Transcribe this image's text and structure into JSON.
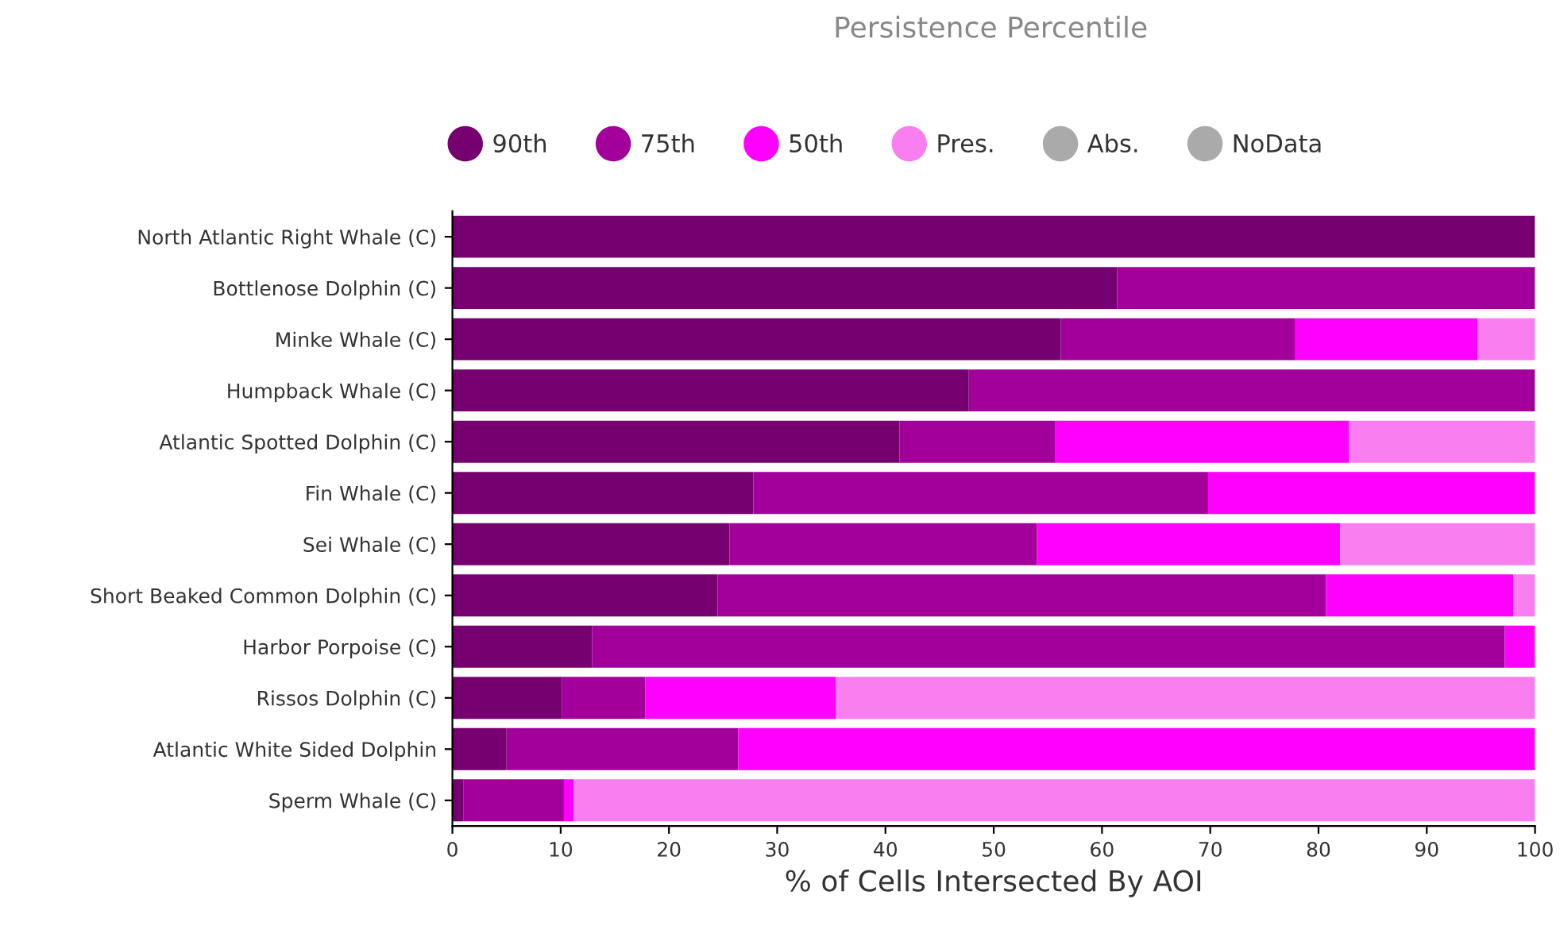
{
  "chart_data": {
    "type": "bar",
    "orientation": "horizontal",
    "stacked": true,
    "title": "Persistence Percentile",
    "xlabel": "% of Cells Intersected By AOI",
    "categories": [
      "North Atlantic Right Whale (C)",
      "Bottlenose Dolphin (C)",
      "Minke Whale (C)",
      "Humpback Whale (C)",
      "Atlantic Spotted Dolphin (C)",
      "Fin Whale (C)",
      "Sei Whale (C)",
      "Short Beaked Common Dolphin (C)",
      "Harbor Porpoise (C)",
      "Rissos Dolphin (C)",
      "Atlantic White Sided Dolphin",
      "Sperm Whale (C)"
    ],
    "series": [
      {
        "name": "90th",
        "color": "#76006f",
        "values": [
          100,
          61.4,
          56.2,
          47.7,
          41.3,
          27.8,
          25.6,
          24.5,
          12.9,
          10.1,
          5.0,
          1.0
        ]
      },
      {
        "name": "75th",
        "color": "#a3009b",
        "values": [
          0,
          38.6,
          21.6,
          52.3,
          14.4,
          42.0,
          28.4,
          56.2,
          84.3,
          7.7,
          21.4,
          9.3
        ]
      },
      {
        "name": "50th",
        "color": "#ff00ff",
        "values": [
          0,
          0,
          16.9,
          0,
          27.1,
          30.2,
          28.0,
          17.3,
          2.8,
          17.6,
          73.6,
          0.9
        ]
      },
      {
        "name": "Pres.",
        "color": "#f97ef0",
        "values": [
          0,
          0,
          5.3,
          0,
          17.2,
          0,
          18.0,
          2.0,
          0,
          64.6,
          0,
          88.8
        ]
      },
      {
        "name": "Abs.",
        "color": "#aaaaaa",
        "values": [
          0,
          0,
          0,
          0,
          0,
          0,
          0,
          0,
          0,
          0,
          0,
          0
        ]
      },
      {
        "name": "NoData",
        "color": "#aaaaaa",
        "values": [
          0,
          0,
          0,
          0,
          0,
          0,
          0,
          0,
          0,
          0,
          0,
          0
        ]
      }
    ],
    "xlim": [
      0,
      100
    ],
    "xticks": [
      0,
      10,
      20,
      30,
      40,
      50,
      60,
      70,
      80,
      90,
      100
    ],
    "grid": false,
    "legend": "top"
  }
}
